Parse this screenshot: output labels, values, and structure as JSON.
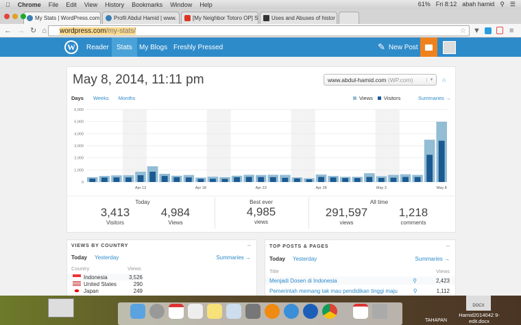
{
  "menubar": {
    "apple": "",
    "app": "Chrome",
    "items": [
      "File",
      "Edit",
      "View",
      "History",
      "Bookmarks",
      "Window",
      "Help"
    ],
    "battery": "61%",
    "clock": "Fri 8:12",
    "user": "abah hamid"
  },
  "tabs": [
    {
      "label": "My Stats | WordPress.com",
      "color": "#3a7fb3"
    },
    {
      "label": "Profil Abdul Hamid | www.",
      "color": "#3a7fb3"
    },
    {
      "label": "[My Neighbor Totoro OP] S",
      "color": "#d32"
    },
    {
      "label": "Uses and Abuses of histor",
      "color": "#333"
    }
  ],
  "address": {
    "domain": "wordpress.com",
    "path": "/my-stats/"
  },
  "wpbar": {
    "nav": [
      "Reader",
      "Stats",
      "My Blogs",
      "Freshly Pressed"
    ],
    "new_post": "New Post"
  },
  "stats": {
    "title": "May 8, 2014, 11:11 pm",
    "site_select": "www.abdul-hamid.com",
    "site_suffix": "(WP.com)",
    "periods": [
      "Days",
      "Weeks",
      "Months"
    ],
    "legend_views": "Views",
    "legend_visitors": "Visitors",
    "summaries": "Summaries →",
    "summary": {
      "today": "Today",
      "today_visitors": "3,413",
      "visitors_label": "Visitors",
      "today_views": "4,984",
      "views_label": "Views",
      "best_label": "Best ever",
      "best_views": "4,985",
      "best_unit": "views",
      "alltime_label": "All time",
      "all_views": "291,597",
      "all_views_unit": "views",
      "all_comments": "1,218",
      "all_comments_unit": "comments"
    }
  },
  "chart_data": {
    "type": "bar",
    "ylim": [
      0,
      6000
    ],
    "yticks": [
      "0",
      "1,000",
      "2,000",
      "3,000",
      "4,000",
      "5,000",
      "6,000"
    ],
    "xtick_labels": [
      "Apr 13",
      "Apr 18",
      "Apr 23",
      "Apr 28",
      "May 3",
      "May 8"
    ],
    "categories": [
      "Apr 9",
      "Apr 10",
      "Apr 11",
      "Apr 12",
      "Apr 13",
      "Apr 14",
      "Apr 15",
      "Apr 16",
      "Apr 17",
      "Apr 18",
      "Apr 19",
      "Apr 20",
      "Apr 21",
      "Apr 22",
      "Apr 23",
      "Apr 24",
      "Apr 25",
      "Apr 26",
      "Apr 27",
      "Apr 28",
      "Apr 29",
      "Apr 30",
      "May 1",
      "May 2",
      "May 3",
      "May 4",
      "May 5",
      "May 6",
      "May 7",
      "May 8"
    ],
    "weekend_shaded": [
      "Apr 12",
      "Apr 13",
      "Apr 19",
      "Apr 20",
      "Apr 26",
      "Apr 27",
      "May 3",
      "May 4"
    ],
    "series": [
      {
        "name": "Views",
        "color": "#93bcd5",
        "values": [
          400,
          500,
          550,
          560,
          850,
          1300,
          680,
          520,
          580,
          370,
          440,
          400,
          520,
          600,
          580,
          600,
          590,
          380,
          310,
          620,
          500,
          430,
          430,
          730,
          480,
          590,
          640,
          590,
          3500,
          4984
        ]
      },
      {
        "name": "Visitors",
        "color": "#1b5a91",
        "values": [
          280,
          370,
          380,
          380,
          560,
          850,
          500,
          400,
          380,
          260,
          270,
          260,
          400,
          420,
          410,
          400,
          350,
          300,
          220,
          420,
          380,
          330,
          330,
          420,
          340,
          360,
          420,
          410,
          2250,
          3413
        ]
      }
    ]
  },
  "country": {
    "title": "VIEWS BY COUNTRY",
    "today": "Today",
    "yesterday": "Yesterday",
    "summaries": "Summaries →",
    "col1": "Country",
    "col2": "Views",
    "rows": [
      {
        "name": "Indonesia",
        "views": "3,526"
      },
      {
        "name": "United States",
        "views": "290"
      },
      {
        "name": "Japan",
        "views": "249"
      }
    ]
  },
  "posts": {
    "title": "TOP POSTS & PAGES",
    "today": "Today",
    "yesterday": "Yesterday",
    "summaries": "Summaries →",
    "col1": "Title",
    "col2": "Views",
    "rows": [
      {
        "title": "Menjadi Dosen di Indonesia",
        "views": "2,423"
      },
      {
        "title": "Pemerintah memang tak mau pendidikan tinggi maju",
        "views": "1,112"
      }
    ]
  },
  "desktop": {
    "file1": "Hamid2014042 9-edit.docx",
    "file1_badge": "DOCX",
    "file2": "TAHAPAN"
  }
}
